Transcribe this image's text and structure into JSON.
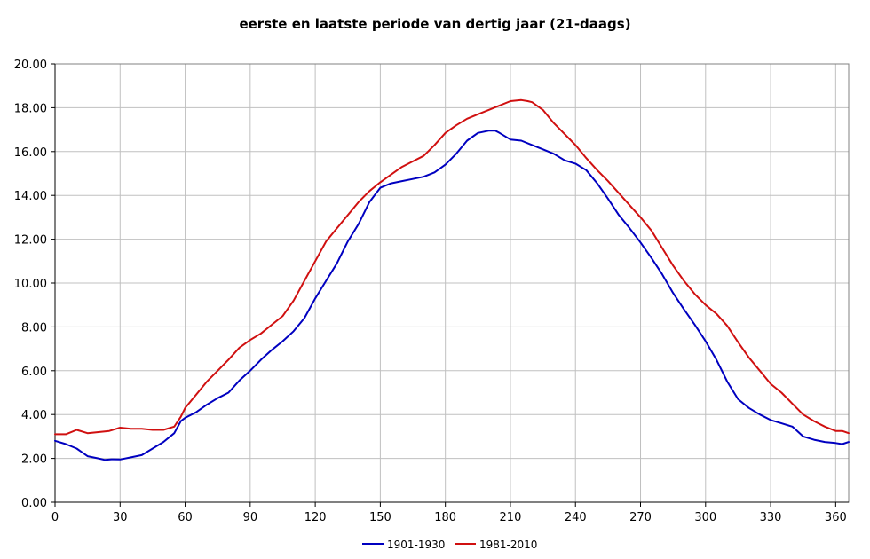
{
  "chart_data": {
    "type": "line",
    "title": "eerste en laatste periode van dertig jaar (21-daags)",
    "xlabel": "",
    "ylabel": "",
    "xlim": [
      0,
      366
    ],
    "ylim": [
      0,
      20
    ],
    "x_ticks": [
      0,
      30,
      60,
      90,
      120,
      150,
      180,
      210,
      240,
      270,
      300,
      330,
      360
    ],
    "x_tick_labels": [
      "0",
      "30",
      "60",
      "90",
      "120",
      "150",
      "180",
      "210",
      "240",
      "270",
      "300",
      "330",
      "360"
    ],
    "y_ticks": [
      0,
      2,
      4,
      6,
      8,
      10,
      12,
      14,
      16,
      18,
      20
    ],
    "y_tick_labels": [
      "0.00",
      "2.00",
      "4.00",
      "6.00",
      "8.00",
      "10.00",
      "12.00",
      "14.00",
      "16.00",
      "18.00",
      "20.00"
    ],
    "grid": true,
    "legend_position": "bottom",
    "series": [
      {
        "name": "1901-1930",
        "color": "#0000c0",
        "x": [
          0,
          5,
          10,
          15,
          20,
          23,
          26,
          30,
          35,
          40,
          45,
          50,
          55,
          58,
          60,
          65,
          70,
          75,
          80,
          85,
          90,
          95,
          100,
          105,
          110,
          115,
          120,
          125,
          130,
          135,
          140,
          145,
          150,
          155,
          160,
          165,
          170,
          175,
          180,
          185,
          190,
          195,
          200,
          203,
          205,
          210,
          215,
          220,
          225,
          230,
          235,
          240,
          245,
          250,
          255,
          260,
          265,
          270,
          275,
          280,
          285,
          290,
          295,
          300,
          305,
          310,
          315,
          320,
          325,
          330,
          335,
          340,
          345,
          350,
          355,
          360,
          363,
          366
        ],
        "values": [
          2.8,
          2.65,
          2.45,
          2.1,
          2.0,
          1.93,
          1.96,
          1.95,
          2.05,
          2.15,
          2.45,
          2.75,
          3.15,
          3.7,
          3.85,
          4.1,
          4.45,
          4.75,
          5.0,
          5.55,
          6.0,
          6.5,
          6.95,
          7.35,
          7.8,
          8.4,
          9.3,
          10.1,
          10.9,
          11.9,
          12.7,
          13.7,
          14.35,
          14.55,
          14.65,
          14.75,
          14.85,
          15.05,
          15.4,
          15.9,
          16.5,
          16.85,
          16.95,
          16.95,
          16.85,
          16.55,
          16.5,
          16.3,
          16.1,
          15.9,
          15.6,
          15.45,
          15.15,
          14.55,
          13.85,
          13.1,
          12.5,
          11.85,
          11.15,
          10.4,
          9.55,
          8.8,
          8.1,
          7.35,
          6.5,
          5.5,
          4.7,
          4.3,
          4.0,
          3.75,
          3.6,
          3.45,
          3.0,
          2.85,
          2.75,
          2.7,
          2.65,
          2.75
        ]
      },
      {
        "name": "1981-2010",
        "color": "#d01010",
        "x": [
          0,
          5,
          10,
          15,
          20,
          25,
          30,
          35,
          40,
          45,
          50,
          55,
          58,
          60,
          65,
          70,
          75,
          80,
          85,
          90,
          95,
          100,
          105,
          110,
          115,
          120,
          125,
          130,
          135,
          140,
          145,
          150,
          155,
          160,
          165,
          170,
          175,
          180,
          185,
          190,
          195,
          200,
          205,
          210,
          215,
          218,
          220,
          225,
          230,
          235,
          240,
          245,
          250,
          255,
          260,
          265,
          270,
          275,
          280,
          285,
          290,
          295,
          300,
          305,
          310,
          315,
          320,
          325,
          330,
          335,
          340,
          345,
          350,
          355,
          360,
          363,
          366
        ],
        "values": [
          3.1,
          3.1,
          3.3,
          3.15,
          3.2,
          3.25,
          3.4,
          3.35,
          3.35,
          3.3,
          3.3,
          3.45,
          3.9,
          4.3,
          4.9,
          5.5,
          6.0,
          6.5,
          7.05,
          7.4,
          7.7,
          8.1,
          8.5,
          9.2,
          10.1,
          11.0,
          11.9,
          12.5,
          13.1,
          13.7,
          14.2,
          14.6,
          14.95,
          15.3,
          15.55,
          15.8,
          16.3,
          16.85,
          17.2,
          17.5,
          17.7,
          17.9,
          18.1,
          18.3,
          18.35,
          18.3,
          18.25,
          17.9,
          17.3,
          16.8,
          16.3,
          15.7,
          15.15,
          14.65,
          14.1,
          13.55,
          13.0,
          12.4,
          11.6,
          10.8,
          10.1,
          9.5,
          9.0,
          8.6,
          8.05,
          7.3,
          6.6,
          6.0,
          5.4,
          5.0,
          4.5,
          4.0,
          3.7,
          3.45,
          3.25,
          3.25,
          3.15
        ]
      }
    ]
  }
}
